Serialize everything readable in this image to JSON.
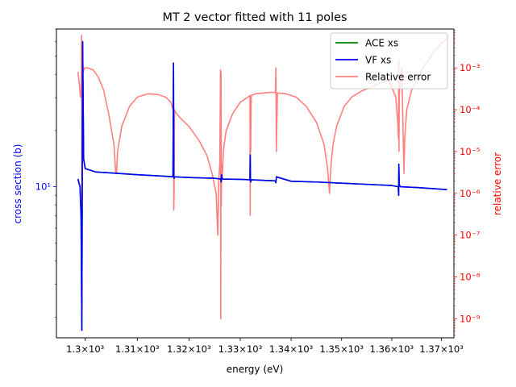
{
  "chart_data": {
    "type": "line",
    "title": "MT 2 vector fitted with 11 poles",
    "xlabel": "energy (eV)",
    "ylabel_left": "cross section (b)",
    "ylabel_right": "relative error",
    "left_axis_color": "#0000ff",
    "right_axis_color": "#ff0000",
    "x_scale": "log",
    "y_left_scale": "log",
    "y_right_scale": "log",
    "xlim": [
      1294.5,
      1372.5
    ],
    "ylim_left": [
      1.55,
      70
    ],
    "ylim_right": [
      3.5e-10,
      0.0085
    ],
    "grid": false,
    "legend_position": "top-right",
    "x_ticks": [
      {
        "value": 1300,
        "label": "1.3×10³"
      },
      {
        "value": 1310,
        "label": "1.31×10³"
      },
      {
        "value": 1320,
        "label": "1.32×10³"
      },
      {
        "value": 1330,
        "label": "1.33×10³"
      },
      {
        "value": 1340,
        "label": "1.34×10³"
      },
      {
        "value": 1350,
        "label": "1.35×10³"
      },
      {
        "value": 1360,
        "label": "1.36×10³"
      },
      {
        "value": 1370,
        "label": "1.37×10³"
      }
    ],
    "y_left_ticks": [
      {
        "value": 10,
        "label": "10¹"
      }
    ],
    "y_right_ticks": [
      {
        "value": 1e-09,
        "label": "10⁻⁹"
      },
      {
        "value": 1e-08,
        "label": "10⁻⁸"
      },
      {
        "value": 1e-07,
        "label": "10⁻⁷"
      },
      {
        "value": 1e-06,
        "label": "10⁻⁶"
      },
      {
        "value": 1e-05,
        "label": "10⁻⁵"
      },
      {
        "value": 0.0001,
        "label": "10⁻⁴"
      },
      {
        "value": 0.001,
        "label": "10⁻³"
      }
    ],
    "series": [
      {
        "name": "ACE xs",
        "color": "#008000",
        "axis": "left",
        "x": [
          1298.6,
          1299.0,
          1299.2,
          1299.35,
          1299.5,
          1299.7,
          1300.0,
          1302.0,
          1306.0,
          1310.0,
          1315.0,
          1316.9,
          1317.0,
          1317.05,
          1317.12,
          1317.2,
          1320.0,
          1325.0,
          1326.2,
          1326.25,
          1326.35,
          1326.5,
          1330.0,
          1331.9,
          1331.95,
          1332.0,
          1332.05,
          1332.1,
          1335.0,
          1336.9,
          1337.0,
          1337.1,
          1340.0,
          1345.0,
          1350.0,
          1355.0,
          1360.0,
          1361.3,
          1361.38,
          1361.42,
          1361.5,
          1361.7,
          1365.0,
          1370.0,
          1371.1
        ],
        "y": [
          11.0,
          10.0,
          7.0,
          1.7,
          60.0,
          14.0,
          12.5,
          12.0,
          11.8,
          11.6,
          11.4,
          11.3,
          46.0,
          11.5,
          11.1,
          11.3,
          11.2,
          11.1,
          11.0,
          10.6,
          11.6,
          11.0,
          10.95,
          10.9,
          14.8,
          11.0,
          10.6,
          10.9,
          10.8,
          10.75,
          10.5,
          11.3,
          10.7,
          10.6,
          10.45,
          10.3,
          10.15,
          10.0,
          9.0,
          13.2,
          10.3,
          10.0,
          9.9,
          9.7,
          9.65
        ]
      },
      {
        "name": "VF xs",
        "color": "#0000ff",
        "axis": "left",
        "x": [
          1298.6,
          1299.0,
          1299.2,
          1299.35,
          1299.5,
          1299.7,
          1300.0,
          1302.0,
          1306.0,
          1310.0,
          1315.0,
          1316.9,
          1317.0,
          1317.05,
          1317.12,
          1317.2,
          1320.0,
          1325.0,
          1326.2,
          1326.25,
          1326.35,
          1326.5,
          1330.0,
          1331.9,
          1331.95,
          1332.0,
          1332.05,
          1332.1,
          1335.0,
          1336.9,
          1337.0,
          1337.1,
          1340.0,
          1345.0,
          1350.0,
          1355.0,
          1360.0,
          1361.3,
          1361.38,
          1361.42,
          1361.5,
          1361.7,
          1365.0,
          1370.0,
          1371.1
        ],
        "y": [
          11.0,
          10.0,
          7.0,
          1.7,
          60.0,
          14.0,
          12.5,
          12.0,
          11.8,
          11.6,
          11.4,
          11.3,
          46.0,
          11.5,
          11.1,
          11.3,
          11.2,
          11.1,
          11.0,
          10.6,
          11.6,
          11.0,
          10.95,
          10.9,
          14.8,
          11.0,
          10.6,
          10.9,
          10.8,
          10.75,
          10.5,
          11.3,
          10.7,
          10.6,
          10.45,
          10.3,
          10.15,
          10.0,
          9.0,
          13.2,
          10.3,
          10.0,
          9.9,
          9.7,
          9.65
        ]
      },
      {
        "name": "Relative error",
        "color": "#ff8080",
        "axis": "right",
        "x": [
          1298.6,
          1298.8,
          1299.1,
          1299.25,
          1299.3,
          1299.38,
          1299.45,
          1299.6,
          1299.9,
          1300.5,
          1301.5,
          1302.5,
          1303.5,
          1304.5,
          1305.5,
          1305.85,
          1306.0,
          1306.2,
          1307.0,
          1308.5,
          1310.0,
          1312.0,
          1314.0,
          1315.5,
          1316.5,
          1316.9,
          1317.0,
          1317.05,
          1317.12,
          1317.2,
          1317.6,
          1318.5,
          1320.0,
          1322.0,
          1323.5,
          1324.5,
          1325.3,
          1325.6,
          1325.8,
          1326.0,
          1326.15,
          1326.2,
          1326.25,
          1326.3,
          1326.35,
          1326.45,
          1326.7,
          1327.2,
          1328.5,
          1330.0,
          1331.5,
          1331.9,
          1331.95,
          1332.0,
          1332.05,
          1332.15,
          1333.0,
          1334.5,
          1336.0,
          1336.9,
          1337.0,
          1337.1,
          1337.3,
          1339.0,
          1341.0,
          1343.0,
          1345.0,
          1346.5,
          1347.2,
          1347.6,
          1347.9,
          1348.3,
          1349.0,
          1350.5,
          1352.0,
          1354.0,
          1356.0,
          1358.0,
          1359.5,
          1360.8,
          1361.2,
          1361.35,
          1361.4,
          1361.45,
          1361.5,
          1361.7,
          1362.0,
          1362.3,
          1362.45,
          1362.6,
          1363.0,
          1364.0,
          1366.0,
          1368.0,
          1370.0,
          1371.1
        ],
        "y": [
          0.0008,
          0.0005,
          0.0002,
          0.0003,
          0.006,
          1e-09,
          0.004,
          0.0008,
          0.001,
          0.001,
          0.0009,
          0.0006,
          0.0003,
          8e-05,
          1.5e-05,
          3e-06,
          3e-06,
          1e-05,
          4e-05,
          0.00012,
          0.0002,
          0.00024,
          0.00023,
          0.0002,
          0.00015,
          0.0001,
          0.0009,
          4e-07,
          1e-06,
          0.0001,
          8e-05,
          6e-05,
          4e-05,
          1.8e-05,
          8e-06,
          3e-06,
          1e-06,
          1e-07,
          2e-06,
          5e-06,
          0.0009,
          1e-09,
          0.0008,
          5e-07,
          5e-06,
          2e-06,
          1e-05,
          3e-05,
          8e-05,
          0.00015,
          0.0002,
          0.00022,
          3e-07,
          0.0002,
          1e-05,
          0.00022,
          0.00024,
          0.00025,
          0.00026,
          0.00026,
          0.001,
          1e-05,
          0.00025,
          0.00024,
          0.0002,
          0.00012,
          5e-05,
          1.5e-05,
          4e-06,
          1e-06,
          5e-06,
          1.5e-05,
          4e-05,
          0.00012,
          0.0002,
          0.00028,
          0.00035,
          0.00045,
          0.0005,
          0.0002,
          5e-05,
          2e-05,
          0.0015,
          1e-05,
          0.0002,
          0.0006,
          0.001,
          2e-05,
          3e-06,
          2e-05,
          0.0001,
          0.0003,
          0.0009,
          0.002,
          0.004,
          0.005
        ]
      }
    ]
  }
}
